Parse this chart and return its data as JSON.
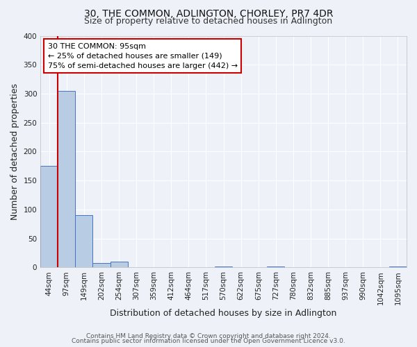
{
  "title": "30, THE COMMON, ADLINGTON, CHORLEY, PR7 4DR",
  "subtitle": "Size of property relative to detached houses in Adlington",
  "xlabel": "Distribution of detached houses by size in Adlington",
  "ylabel": "Number of detached properties",
  "bar_labels": [
    "44sqm",
    "97sqm",
    "149sqm",
    "202sqm",
    "254sqm",
    "307sqm",
    "359sqm",
    "412sqm",
    "464sqm",
    "517sqm",
    "570sqm",
    "622sqm",
    "675sqm",
    "727sqm",
    "780sqm",
    "832sqm",
    "885sqm",
    "937sqm",
    "990sqm",
    "1042sqm",
    "1095sqm"
  ],
  "bar_values": [
    175,
    305,
    90,
    8,
    10,
    0,
    0,
    0,
    0,
    0,
    2,
    0,
    0,
    2,
    0,
    0,
    0,
    0,
    0,
    0,
    2
  ],
  "bar_color": "#b8cce4",
  "bar_edge_color": "#4472c4",
  "ylim": [
    0,
    400
  ],
  "yticks": [
    0,
    50,
    100,
    150,
    200,
    250,
    300,
    350,
    400
  ],
  "property_label": "30 THE COMMON: 95sqm",
  "pct_smaller_label": "← 25% of detached houses are smaller (149)",
  "pct_larger_label": "75% of semi-detached houses are larger (442) →",
  "box_edge_color": "#cc0000",
  "red_line_x": 0.5,
  "footer_line1": "Contains HM Land Registry data © Crown copyright and database right 2024.",
  "footer_line2": "Contains public sector information licensed under the Open Government Licence v3.0.",
  "background_color": "#eef2f8",
  "grid_color": "#ffffff",
  "title_fontsize": 10,
  "subtitle_fontsize": 9,
  "axis_label_fontsize": 9,
  "tick_fontsize": 7.5,
  "annotation_fontsize": 8,
  "footer_fontsize": 6.5
}
